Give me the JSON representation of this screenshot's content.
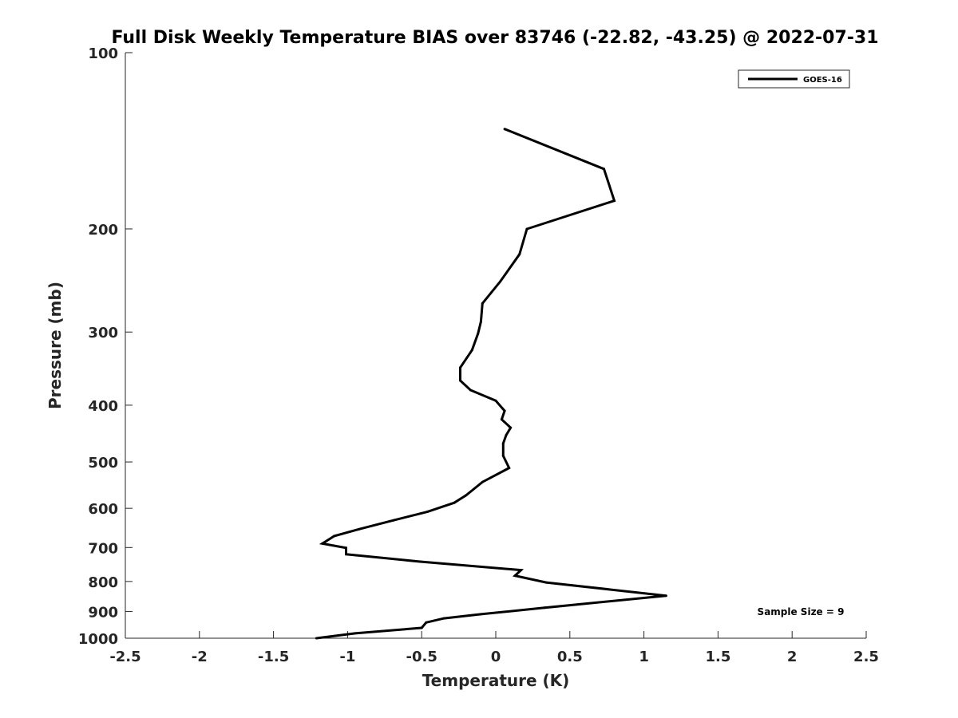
{
  "chart_data": {
    "type": "line",
    "title": "Full Disk Weekly Temperature BIAS over 83746 (-22.82, -43.25) @ 2022-07-31",
    "xlabel": "Temperature (K)",
    "ylabel": "Pressure (mb)",
    "xlim": [
      -2.5,
      2.5
    ],
    "ylim": [
      100,
      1000
    ],
    "y_scale": "log",
    "y_reversed": true,
    "grid": false,
    "legend_position": "top-right",
    "x_ticks": [
      -2.5,
      -2,
      -1.5,
      -1,
      -0.5,
      0,
      0.5,
      1,
      1.5,
      2,
      2.5
    ],
    "x_tick_labels": [
      "-2.5",
      "-2",
      "-1.5",
      "-1",
      "-0.5",
      "0",
      "0.5",
      "1",
      "1.5",
      "2",
      "2.5"
    ],
    "y_ticks": [
      100,
      200,
      300,
      400,
      500,
      600,
      700,
      800,
      900,
      1000
    ],
    "y_tick_labels": [
      "100",
      "200",
      "300",
      "400",
      "500",
      "600",
      "700",
      "800",
      "900",
      "1000"
    ],
    "annotation": "Sample Size = 9",
    "series": [
      {
        "name": "GOES-16",
        "color": "#000000",
        "points": [
          {
            "x": 0.06,
            "y": 135
          },
          {
            "x": 0.73,
            "y": 158
          },
          {
            "x": 0.8,
            "y": 179
          },
          {
            "x": 0.21,
            "y": 200
          },
          {
            "x": 0.16,
            "y": 221
          },
          {
            "x": 0.03,
            "y": 246
          },
          {
            "x": -0.09,
            "y": 268
          },
          {
            "x": -0.1,
            "y": 288
          },
          {
            "x": -0.12,
            "y": 302
          },
          {
            "x": -0.16,
            "y": 322
          },
          {
            "x": -0.24,
            "y": 345
          },
          {
            "x": -0.24,
            "y": 363
          },
          {
            "x": -0.17,
            "y": 377
          },
          {
            "x": 0.0,
            "y": 393
          },
          {
            "x": 0.06,
            "y": 409
          },
          {
            "x": 0.04,
            "y": 423
          },
          {
            "x": 0.1,
            "y": 437
          },
          {
            "x": 0.07,
            "y": 450
          },
          {
            "x": 0.05,
            "y": 465
          },
          {
            "x": 0.05,
            "y": 488
          },
          {
            "x": 0.09,
            "y": 512
          },
          {
            "x": -0.09,
            "y": 541
          },
          {
            "x": -0.2,
            "y": 570
          },
          {
            "x": -0.28,
            "y": 587
          },
          {
            "x": -0.46,
            "y": 608
          },
          {
            "x": -0.69,
            "y": 629
          },
          {
            "x": -0.92,
            "y": 651
          },
          {
            "x": -1.09,
            "y": 669
          },
          {
            "x": -1.17,
            "y": 689
          },
          {
            "x": -1.01,
            "y": 701
          },
          {
            "x": -1.01,
            "y": 719
          },
          {
            "x": -0.51,
            "y": 740
          },
          {
            "x": 0.17,
            "y": 765
          },
          {
            "x": 0.13,
            "y": 782
          },
          {
            "x": 0.34,
            "y": 803
          },
          {
            "x": 1.15,
            "y": 846
          },
          {
            "x": 0.33,
            "y": 887
          },
          {
            "x": -0.1,
            "y": 910
          },
          {
            "x": -0.35,
            "y": 925
          },
          {
            "x": -0.47,
            "y": 940
          },
          {
            "x": -0.5,
            "y": 960
          },
          {
            "x": -0.95,
            "y": 981
          },
          {
            "x": -1.21,
            "y": 1000
          }
        ]
      }
    ]
  }
}
